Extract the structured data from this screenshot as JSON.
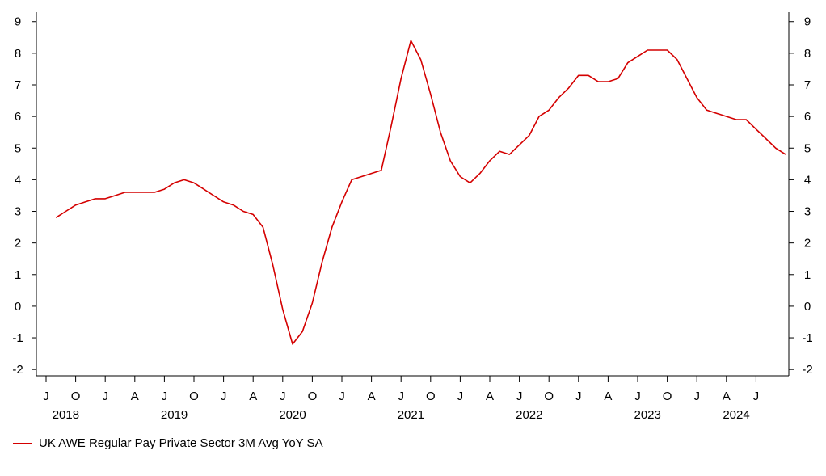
{
  "chart_data": {
    "type": "line",
    "series": [
      {
        "name": "UK AWE Regular Pay Private Sector 3M Avg YoY SA",
        "color": "#d40000",
        "x": [
          "2018-05",
          "2018-06",
          "2018-07",
          "2018-08",
          "2018-09",
          "2018-10",
          "2018-11",
          "2018-12",
          "2019-01",
          "2019-02",
          "2019-03",
          "2019-04",
          "2019-05",
          "2019-06",
          "2019-07",
          "2019-08",
          "2019-09",
          "2019-10",
          "2019-11",
          "2019-12",
          "2020-01",
          "2020-02",
          "2020-03",
          "2020-04",
          "2020-05",
          "2020-06",
          "2020-07",
          "2020-08",
          "2020-09",
          "2020-10",
          "2020-11",
          "2020-12",
          "2021-01",
          "2021-02",
          "2021-03",
          "2021-04",
          "2021-05",
          "2021-06",
          "2021-07",
          "2021-08",
          "2021-09",
          "2021-10",
          "2021-11",
          "2021-12",
          "2022-01",
          "2022-02",
          "2022-03",
          "2022-04",
          "2022-05",
          "2022-06",
          "2022-07",
          "2022-08",
          "2022-09",
          "2022-10",
          "2022-11",
          "2022-12",
          "2023-01",
          "2023-02",
          "2023-03",
          "2023-04",
          "2023-05",
          "2023-06",
          "2023-07",
          "2023-08",
          "2023-09",
          "2023-10",
          "2023-11",
          "2023-12",
          "2024-01",
          "2024-02",
          "2024-03",
          "2024-04",
          "2024-05",
          "2024-06",
          "2024-07"
        ],
        "values": [
          2.8,
          3.0,
          3.2,
          3.3,
          3.4,
          3.4,
          3.5,
          3.6,
          3.6,
          3.6,
          3.6,
          3.7,
          3.9,
          4.0,
          3.9,
          3.7,
          3.5,
          3.3,
          3.2,
          3.0,
          2.9,
          2.5,
          1.3,
          -0.1,
          -1.2,
          -0.8,
          0.1,
          1.4,
          2.5,
          3.3,
          4.0,
          4.1,
          4.2,
          4.3,
          5.7,
          7.2,
          8.4,
          7.8,
          6.7,
          5.5,
          4.6,
          4.1,
          3.9,
          4.2,
          4.6,
          4.9,
          4.8,
          5.1,
          5.4,
          6.0,
          6.2,
          6.6,
          6.9,
          7.3,
          7.3,
          7.1,
          7.1,
          7.2,
          7.7,
          7.9,
          8.1,
          8.1,
          8.1,
          7.8,
          7.2,
          6.6,
          6.2,
          6.1,
          6.0,
          5.9,
          5.9,
          5.6,
          5.3,
          5.0,
          4.8
        ]
      }
    ],
    "ylim": [
      -2.2,
      9.3
    ],
    "yticks": [
      -2,
      -1,
      0,
      1,
      2,
      3,
      4,
      5,
      6,
      7,
      8,
      9
    ],
    "xticks": [
      {
        "x": "2018-04",
        "label": "J"
      },
      {
        "x": "2018-07",
        "label": "O"
      },
      {
        "x": "2018-10",
        "label": "J"
      },
      {
        "x": "2019-01",
        "label": "A"
      },
      {
        "x": "2019-04",
        "label": "J"
      },
      {
        "x": "2019-07",
        "label": "O"
      },
      {
        "x": "2019-10",
        "label": "J"
      },
      {
        "x": "2020-01",
        "label": "A"
      },
      {
        "x": "2020-04",
        "label": "J"
      },
      {
        "x": "2020-07",
        "label": "O"
      },
      {
        "x": "2020-10",
        "label": "J"
      },
      {
        "x": "2021-01",
        "label": "A"
      },
      {
        "x": "2021-04",
        "label": "J"
      },
      {
        "x": "2021-07",
        "label": "O"
      },
      {
        "x": "2021-10",
        "label": "J"
      },
      {
        "x": "2022-01",
        "label": "A"
      },
      {
        "x": "2022-04",
        "label": "J"
      },
      {
        "x": "2022-07",
        "label": "O"
      },
      {
        "x": "2022-10",
        "label": "J"
      },
      {
        "x": "2023-01",
        "label": "A"
      },
      {
        "x": "2023-04",
        "label": "J"
      },
      {
        "x": "2023-07",
        "label": "O"
      },
      {
        "x": "2023-10",
        "label": "J"
      },
      {
        "x": "2024-01",
        "label": "A"
      },
      {
        "x": "2024-04",
        "label": "J"
      }
    ],
    "year_labels": [
      {
        "x": "2018-06",
        "label": "2018"
      },
      {
        "x": "2019-05",
        "label": "2019"
      },
      {
        "x": "2020-05",
        "label": "2020"
      },
      {
        "x": "2021-05",
        "label": "2021"
      },
      {
        "x": "2022-05",
        "label": "2022"
      },
      {
        "x": "2023-05",
        "label": "2023"
      },
      {
        "x": "2024-02",
        "label": "2024"
      }
    ],
    "xlim": [
      "2018-04",
      "2024-07"
    ],
    "grid": false,
    "legend_position": "bottom-left",
    "dual_y_axis_mirrored": true
  }
}
